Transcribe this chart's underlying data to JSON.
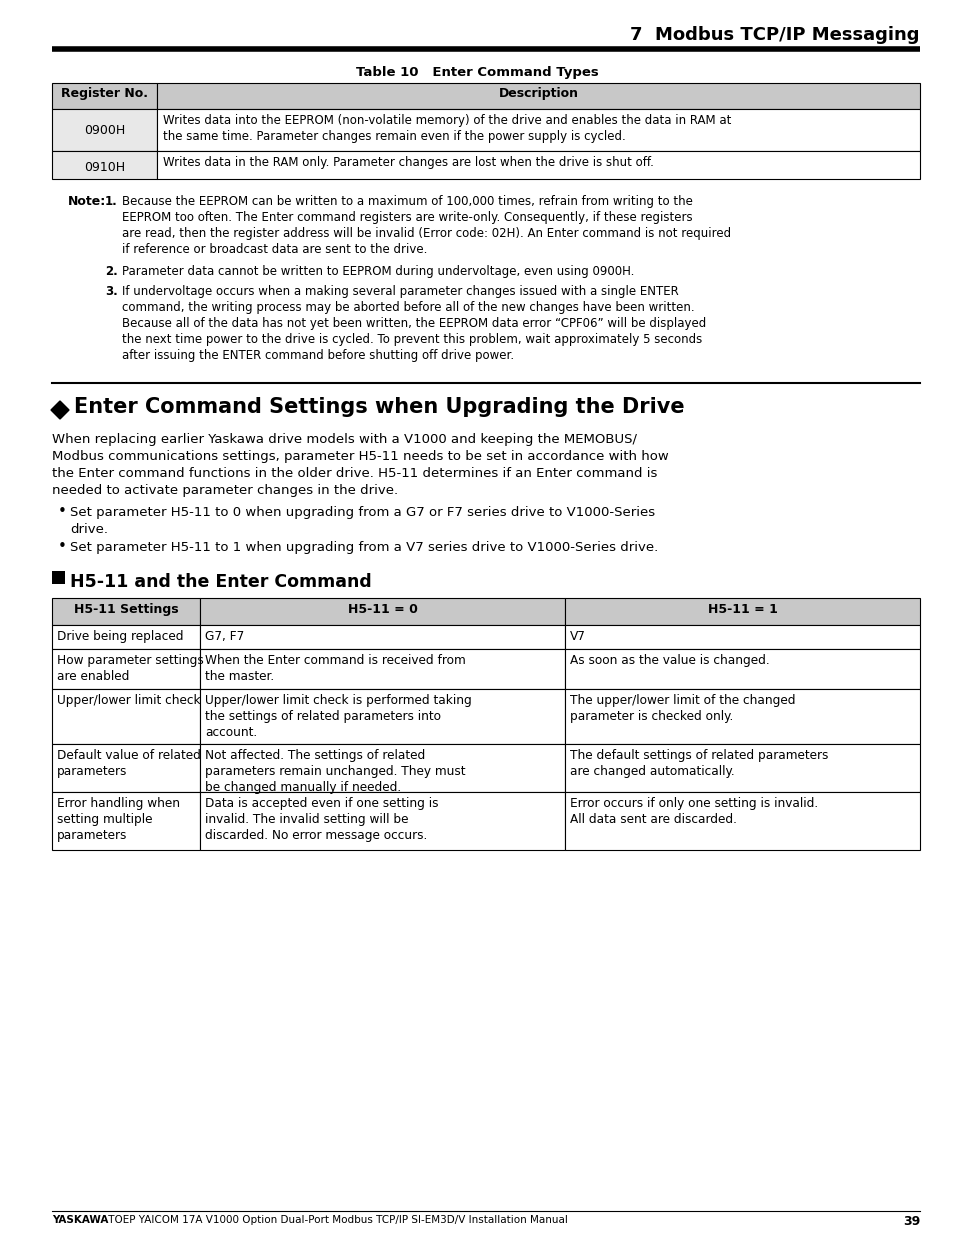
{
  "page_title": "7  Modbus TCP/IP Messaging",
  "table10_title": "Table 10   Enter Command Types",
  "table10_headers": [
    "Register No.",
    "Description"
  ],
  "table10_row1_key": "0900H",
  "table10_row1_val": "Writes data into the EEPROM (non-volatile memory) of the drive and enables the data in RAM at\nthe same time. Parameter changes remain even if the power supply is cycled.",
  "table10_row2_key": "0910H",
  "table10_row2_val": "Writes data in the RAM only. Parameter changes are lost when the drive is shut off.",
  "note_label": "Note:",
  "note1": "Because the EEPROM can be written to a maximum of 100,000 times, refrain from writing to the\nEEPROM too often. The Enter command registers are write-only. Consequently, if these registers\nare read, then the register address will be invalid (Error code: 02H). An Enter command is not required\nif reference or broadcast data are sent to the drive.",
  "note2": "Parameter data cannot be written to EEPROM during undervoltage, even using 0900H.",
  "note3": "If undervoltage occurs when a making several parameter changes issued with a single ENTER\ncommand, the writing process may be aborted before all of the new changes have been written.\nBecause all of the data has not yet been written, the EEPROM data error “CPF06” will be displayed\nthe next time power to the drive is cycled. To prevent this problem, wait approximately 5 seconds\nafter issuing the ENTER command before shutting off drive power.",
  "section_title": "Enter Command Settings when Upgrading the Drive",
  "section_body_line1": "When replacing earlier Yaskawa drive models with a V1000 and keeping the MEMOBUS/",
  "section_body_line2": "Modbus communications settings, parameter H5-11 needs to be set in accordance with how",
  "section_body_line3": "the Enter command functions in the older drive. H5-11 determines if an Enter command is",
  "section_body_line4": "needed to activate parameter changes in the drive.",
  "bullet1a": "Set parameter H5-11 to 0 when upgrading from a G7 or F7 series drive to V1000-Series",
  "bullet1b": "drive.",
  "bullet2": "Set parameter H5-11 to 1 when upgrading from a V7 series drive to V1000-Series drive.",
  "subsection_title": "H5-11 and the Enter Command",
  "t2h0": "H5-11 Settings",
  "t2h1": "H5-11 = 0",
  "t2h2": "H5-11 = 1",
  "t2r0c0": "Drive being replaced",
  "t2r0c1": "G7, F7",
  "t2r0c2": "V7",
  "t2r1c0": "How parameter settings\nare enabled",
  "t2r1c1": "When the Enter command is received from\nthe master.",
  "t2r1c2": "As soon as the value is changed.",
  "t2r2c0": "Upper/lower limit check",
  "t2r2c1": "Upper/lower limit check is performed taking\nthe settings of related parameters into\naccount.",
  "t2r2c2": "The upper/lower limit of the changed\nparameter is checked only.",
  "t2r3c0": "Default value of related\nparameters",
  "t2r3c1": "Not affected. The settings of related\nparameters remain unchanged. They must\nbe changed manually if needed.",
  "t2r3c2": "The default settings of related parameters\nare changed automatically.",
  "t2r4c0": "Error handling when\nsetting multiple\nparameters",
  "t2r4c1": "Data is accepted even if one setting is\ninvalid. The invalid setting will be\ndiscarded. No error message occurs.",
  "t2r4c2": "Error occurs if only one setting is invalid.\nAll data sent are discarded.",
  "footer_bold": "YASKAWA",
  "footer_rest": " TOEP YAICOM 17A V1000 Option Dual-Port Modbus TCP/IP SI-EM3D/V Installation Manual",
  "footer_page": "39",
  "header_gray": "#c8c8c8",
  "cell_gray": "#e0e0e0",
  "white": "#ffffff",
  "black": "#000000"
}
